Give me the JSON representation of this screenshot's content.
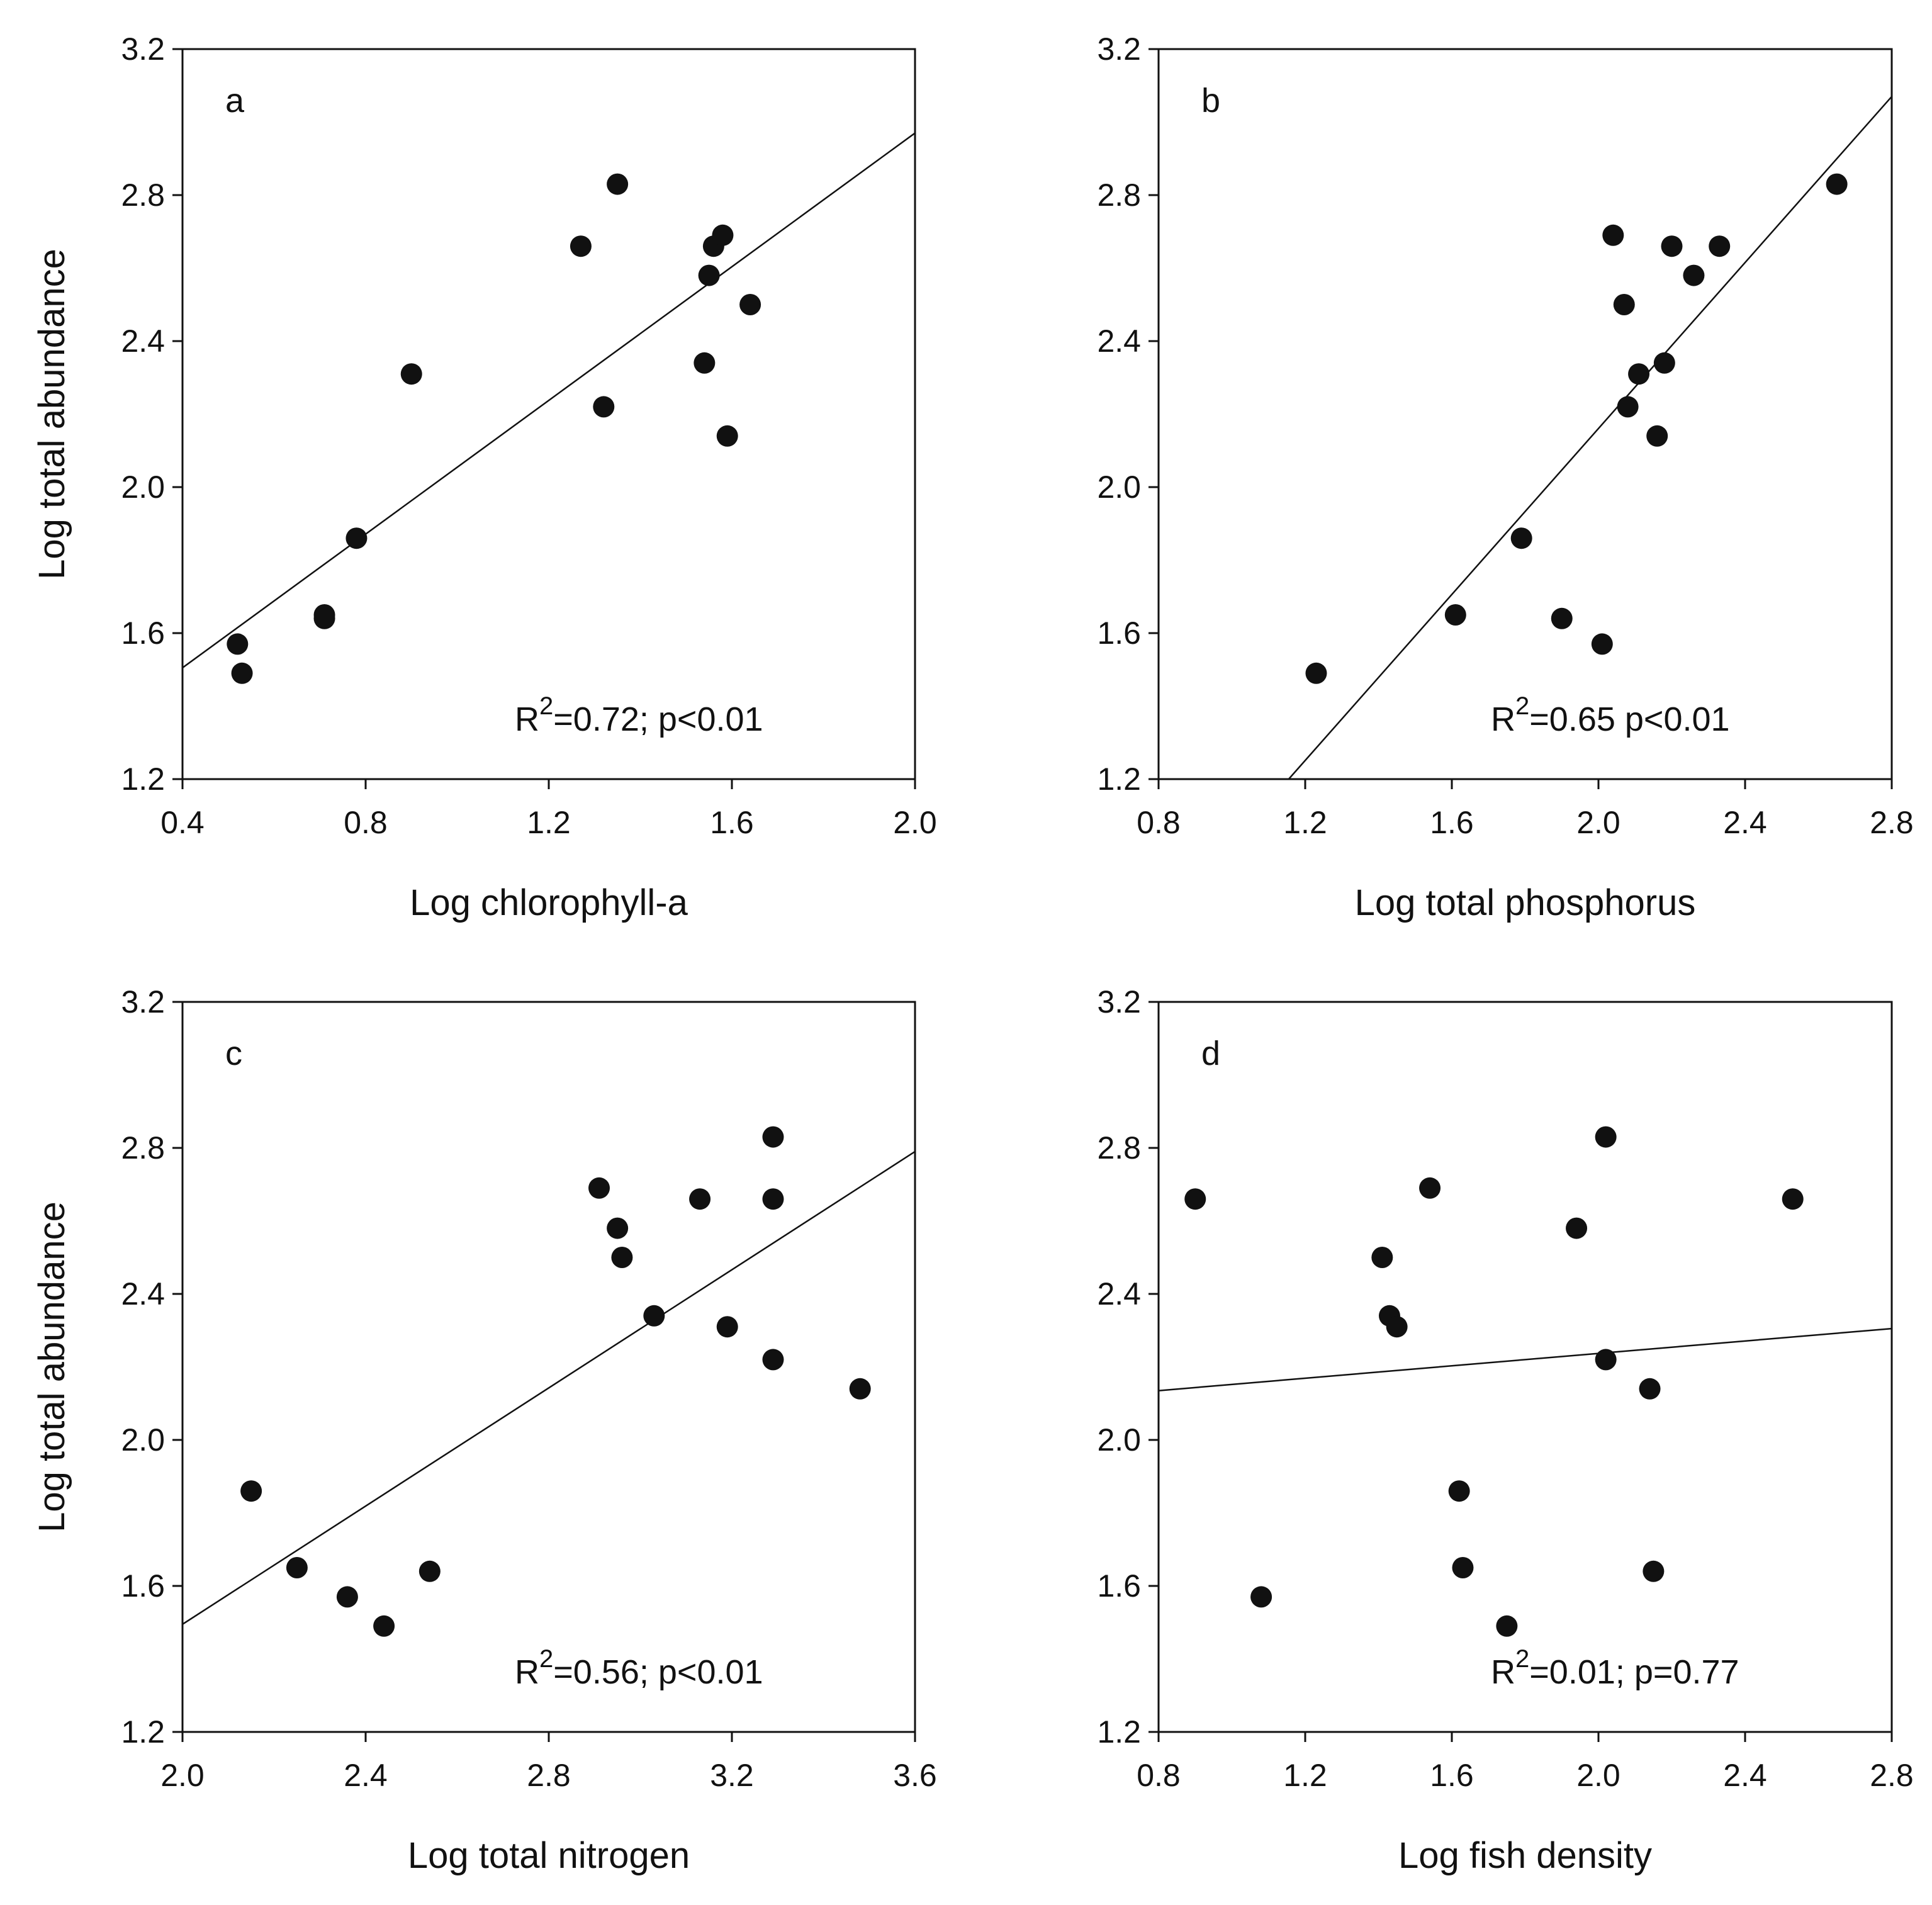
{
  "figure": {
    "type": "scatter-grid",
    "rows": 2,
    "cols": 2
  },
  "chart_data": [
    {
      "type": "scatter",
      "panel": "a",
      "xlabel": "Log chlorophyll-a",
      "ylabel": "Log total abundance",
      "xlim": [
        0.4,
        2.0
      ],
      "ylim": [
        1.2,
        3.2
      ],
      "xticks": [
        "0.4",
        "0.8",
        "1.2",
        "1.6",
        "2.0"
      ],
      "yticks": [
        "1.2",
        "1.6",
        "2.0",
        "2.4",
        "2.8",
        "3.2"
      ],
      "stat_prefix": "R",
      "stat_sup": "2",
      "stat_rest": "=0.72; p<0.01",
      "fit": {
        "x1": 0.4,
        "y1": 1.505,
        "x2": 2.0,
        "y2": 2.97
      },
      "points": [
        {
          "x": 0.52,
          "y": 1.57
        },
        {
          "x": 0.53,
          "y": 1.49
        },
        {
          "x": 0.71,
          "y": 1.65
        },
        {
          "x": 0.71,
          "y": 1.64
        },
        {
          "x": 0.78,
          "y": 1.86
        },
        {
          "x": 0.9,
          "y": 2.31
        },
        {
          "x": 1.27,
          "y": 2.66
        },
        {
          "x": 1.32,
          "y": 2.22
        },
        {
          "x": 1.35,
          "y": 2.83
        },
        {
          "x": 1.54,
          "y": 2.34
        },
        {
          "x": 1.55,
          "y": 2.58
        },
        {
          "x": 1.56,
          "y": 2.66
        },
        {
          "x": 1.58,
          "y": 2.69
        },
        {
          "x": 1.59,
          "y": 2.14
        },
        {
          "x": 1.64,
          "y": 2.5
        }
      ]
    },
    {
      "type": "scatter",
      "panel": "b",
      "xlabel": "Log total phosphorus",
      "ylabel": "",
      "xlim": [
        0.8,
        2.8
      ],
      "ylim": [
        1.2,
        3.2
      ],
      "xticks": [
        "0.8",
        "1.2",
        "1.6",
        "2.0",
        "2.4",
        "2.8"
      ],
      "yticks": [
        "1.2",
        "1.6",
        "2.0",
        "2.4",
        "2.8",
        "3.2"
      ],
      "stat_prefix": "R",
      "stat_sup": "2",
      "stat_rest": "=0.65 p<0.01",
      "fit": {
        "x1": 1.155,
        "y1": 1.2,
        "x2": 2.8,
        "y2": 3.07
      },
      "points": [
        {
          "x": 1.23,
          "y": 1.49
        },
        {
          "x": 1.61,
          "y": 1.65
        },
        {
          "x": 1.79,
          "y": 1.86
        },
        {
          "x": 1.9,
          "y": 1.64
        },
        {
          "x": 2.01,
          "y": 1.57
        },
        {
          "x": 2.04,
          "y": 2.69
        },
        {
          "x": 2.07,
          "y": 2.5
        },
        {
          "x": 2.08,
          "y": 2.22
        },
        {
          "x": 2.11,
          "y": 2.31
        },
        {
          "x": 2.16,
          "y": 2.14
        },
        {
          "x": 2.18,
          "y": 2.34
        },
        {
          "x": 2.2,
          "y": 2.66
        },
        {
          "x": 2.26,
          "y": 2.58
        },
        {
          "x": 2.33,
          "y": 2.66
        },
        {
          "x": 2.65,
          "y": 2.83
        }
      ]
    },
    {
      "type": "scatter",
      "panel": "c",
      "xlabel": "Log total nitrogen",
      "ylabel": "Log total abundance",
      "xlim": [
        2.0,
        3.6
      ],
      "ylim": [
        1.2,
        3.2
      ],
      "xticks": [
        "2.0",
        "2.4",
        "2.8",
        "3.2",
        "3.6"
      ],
      "yticks": [
        "1.2",
        "1.6",
        "2.0",
        "2.4",
        "2.8",
        "3.2"
      ],
      "stat_prefix": "R",
      "stat_sup": "2",
      "stat_rest": "=0.56; p<0.01",
      "fit": {
        "x1": 2.0,
        "y1": 1.495,
        "x2": 3.6,
        "y2": 2.79
      },
      "points": [
        {
          "x": 2.15,
          "y": 1.86
        },
        {
          "x": 2.25,
          "y": 1.65
        },
        {
          "x": 2.36,
          "y": 1.57
        },
        {
          "x": 2.44,
          "y": 1.49
        },
        {
          "x": 2.54,
          "y": 1.64
        },
        {
          "x": 2.91,
          "y": 2.69
        },
        {
          "x": 2.95,
          "y": 2.58
        },
        {
          "x": 2.96,
          "y": 2.5
        },
        {
          "x": 3.03,
          "y": 2.34
        },
        {
          "x": 3.13,
          "y": 2.66
        },
        {
          "x": 3.19,
          "y": 2.31
        },
        {
          "x": 3.29,
          "y": 2.83
        },
        {
          "x": 3.29,
          "y": 2.66
        },
        {
          "x": 3.29,
          "y": 2.22
        },
        {
          "x": 3.48,
          "y": 2.14
        }
      ]
    },
    {
      "type": "scatter",
      "panel": "d",
      "xlabel": "Log fish density",
      "ylabel": "",
      "xlim": [
        0.8,
        2.8
      ],
      "ylim": [
        1.2,
        3.2
      ],
      "xticks": [
        "0.8",
        "1.2",
        "1.6",
        "2.0",
        "2.4",
        "2.8"
      ],
      "yticks": [
        "1.2",
        "1.6",
        "2.0",
        "2.4",
        "2.8",
        "3.2"
      ],
      "stat_prefix": "R",
      "stat_sup": "2",
      "stat_rest": "=0.01; p=0.77",
      "fit": {
        "x1": 0.8,
        "y1": 2.135,
        "x2": 2.8,
        "y2": 2.305
      },
      "points": [
        {
          "x": 0.9,
          "y": 2.66
        },
        {
          "x": 1.08,
          "y": 1.57
        },
        {
          "x": 1.41,
          "y": 2.5
        },
        {
          "x": 1.43,
          "y": 2.34
        },
        {
          "x": 1.45,
          "y": 2.31
        },
        {
          "x": 1.54,
          "y": 2.69
        },
        {
          "x": 1.62,
          "y": 1.86
        },
        {
          "x": 1.63,
          "y": 1.65
        },
        {
          "x": 1.75,
          "y": 1.49
        },
        {
          "x": 1.94,
          "y": 2.58
        },
        {
          "x": 2.02,
          "y": 2.83
        },
        {
          "x": 2.02,
          "y": 2.22
        },
        {
          "x": 2.14,
          "y": 2.14
        },
        {
          "x": 2.15,
          "y": 1.64
        },
        {
          "x": 2.53,
          "y": 2.66
        }
      ]
    }
  ]
}
